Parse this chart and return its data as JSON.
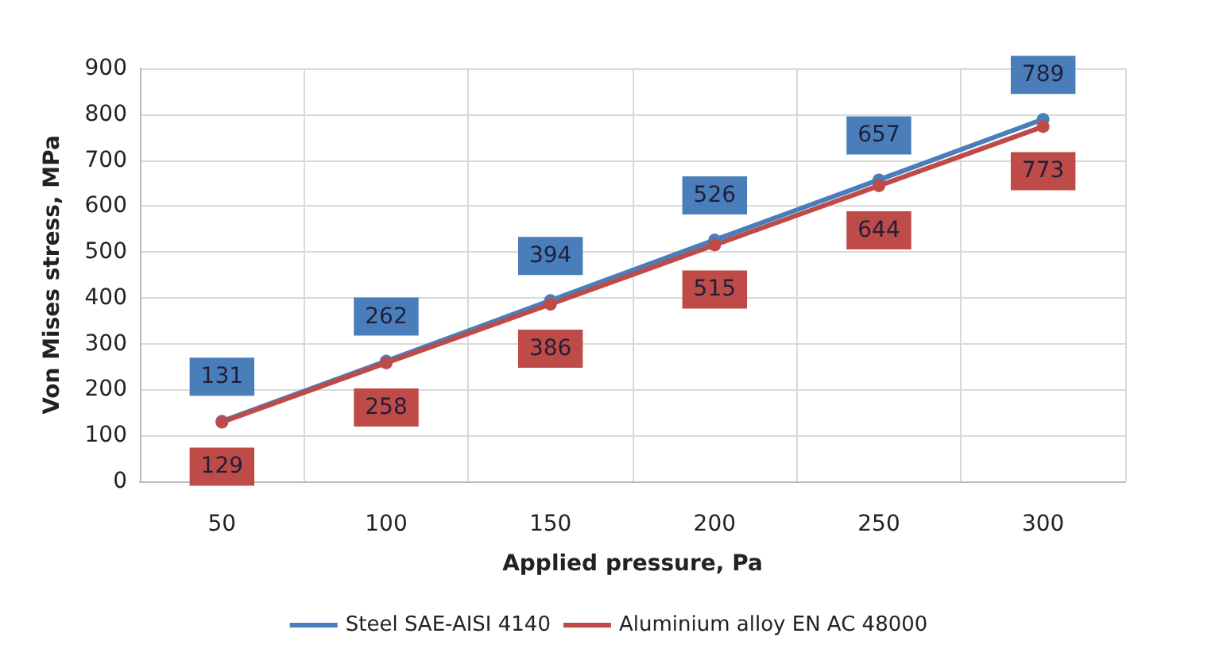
{
  "chart_data": {
    "type": "line",
    "xlabel": "Applied pressure, Pa",
    "ylabel": "Von Mises stress, MPa",
    "categories": [
      "50",
      "100",
      "150",
      "200",
      "250",
      "300"
    ],
    "series": [
      {
        "name": "Steel SAE-AISI 4140",
        "color": "#4a7ebb",
        "values": [
          131,
          262,
          394,
          526,
          657,
          789
        ]
      },
      {
        "name": "Aluminium alloy EN AC 48000",
        "color": "#be4b48",
        "values": [
          129,
          258,
          386,
          515,
          644,
          773
        ]
      }
    ],
    "ylim": [
      0,
      900
    ],
    "yticks": [
      0,
      100,
      200,
      300,
      400,
      500,
      600,
      700,
      800,
      900
    ],
    "grid": true,
    "legend": "bottom",
    "marker": "circle",
    "line_style": "solid",
    "data_labels": true
  }
}
